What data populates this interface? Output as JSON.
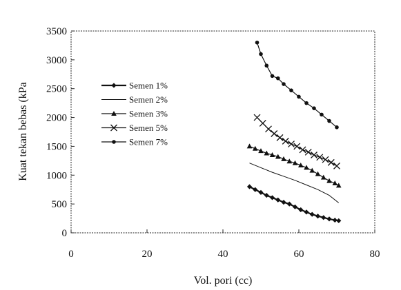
{
  "chart_data": {
    "type": "scatter",
    "title": "",
    "xlabel": "Vol. pori (cc)",
    "ylabel": "Kuat tekan bebas (kPa",
    "xlim": [
      0,
      80
    ],
    "ylim": [
      0,
      3500
    ],
    "xticks": [
      0,
      20,
      40,
      60,
      80
    ],
    "yticks": [
      0,
      500,
      1000,
      1500,
      2000,
      2500,
      3000,
      3500
    ],
    "grid": false,
    "legend_position": "left",
    "series": [
      {
        "name": "Semen 1%",
        "marker": "diamond",
        "color": "#111111",
        "stroke_width": 2.2,
        "x": [
          47,
          48.5,
          50,
          51.5,
          53,
          54.5,
          56,
          57.5,
          59,
          60.5,
          62,
          63.5,
          65,
          66.5,
          68,
          69.5,
          70.5
        ],
        "y": [
          800,
          750,
          700,
          650,
          610,
          570,
          530,
          500,
          450,
          400,
          360,
          320,
          290,
          265,
          240,
          220,
          210
        ]
      },
      {
        "name": "Semen 2%",
        "marker": "none",
        "color": "#111111",
        "stroke_width": 1,
        "x": [
          47,
          50,
          53,
          56,
          59,
          62,
          65,
          68,
          70.5
        ],
        "y": [
          1210,
          1130,
          1050,
          980,
          910,
          830,
          750,
          650,
          520
        ]
      },
      {
        "name": "Semen 3%",
        "marker": "triangle",
        "color": "#111111",
        "stroke_width": 1.2,
        "x": [
          47,
          48.5,
          50,
          51.5,
          53,
          54.5,
          56,
          57.5,
          59,
          60.5,
          62,
          63.5,
          65,
          66.5,
          68,
          69.5,
          70.5
        ],
        "y": [
          1500,
          1460,
          1420,
          1380,
          1350,
          1320,
          1280,
          1240,
          1210,
          1170,
          1130,
          1080,
          1020,
          960,
          900,
          860,
          820
        ]
      },
      {
        "name": "Semen 5%",
        "marker": "x",
        "color": "#111111",
        "stroke_width": 1.2,
        "x": [
          49,
          50.5,
          52,
          53.5,
          55,
          56.5,
          58,
          59.5,
          61,
          62.5,
          64,
          65.5,
          67,
          68.5,
          70
        ],
        "y": [
          2000,
          1900,
          1800,
          1720,
          1650,
          1590,
          1540,
          1500,
          1440,
          1400,
          1350,
          1310,
          1270,
          1220,
          1160
        ]
      },
      {
        "name": "Semen 7%",
        "marker": "circle",
        "color": "#111111",
        "stroke_width": 1.2,
        "x": [
          49,
          50,
          51.5,
          53,
          54.5,
          56,
          58,
          60,
          62,
          64,
          66,
          68,
          70
        ],
        "y": [
          3300,
          3100,
          2900,
          2720,
          2680,
          2580,
          2470,
          2360,
          2250,
          2160,
          2050,
          1940,
          1830
        ]
      }
    ]
  }
}
